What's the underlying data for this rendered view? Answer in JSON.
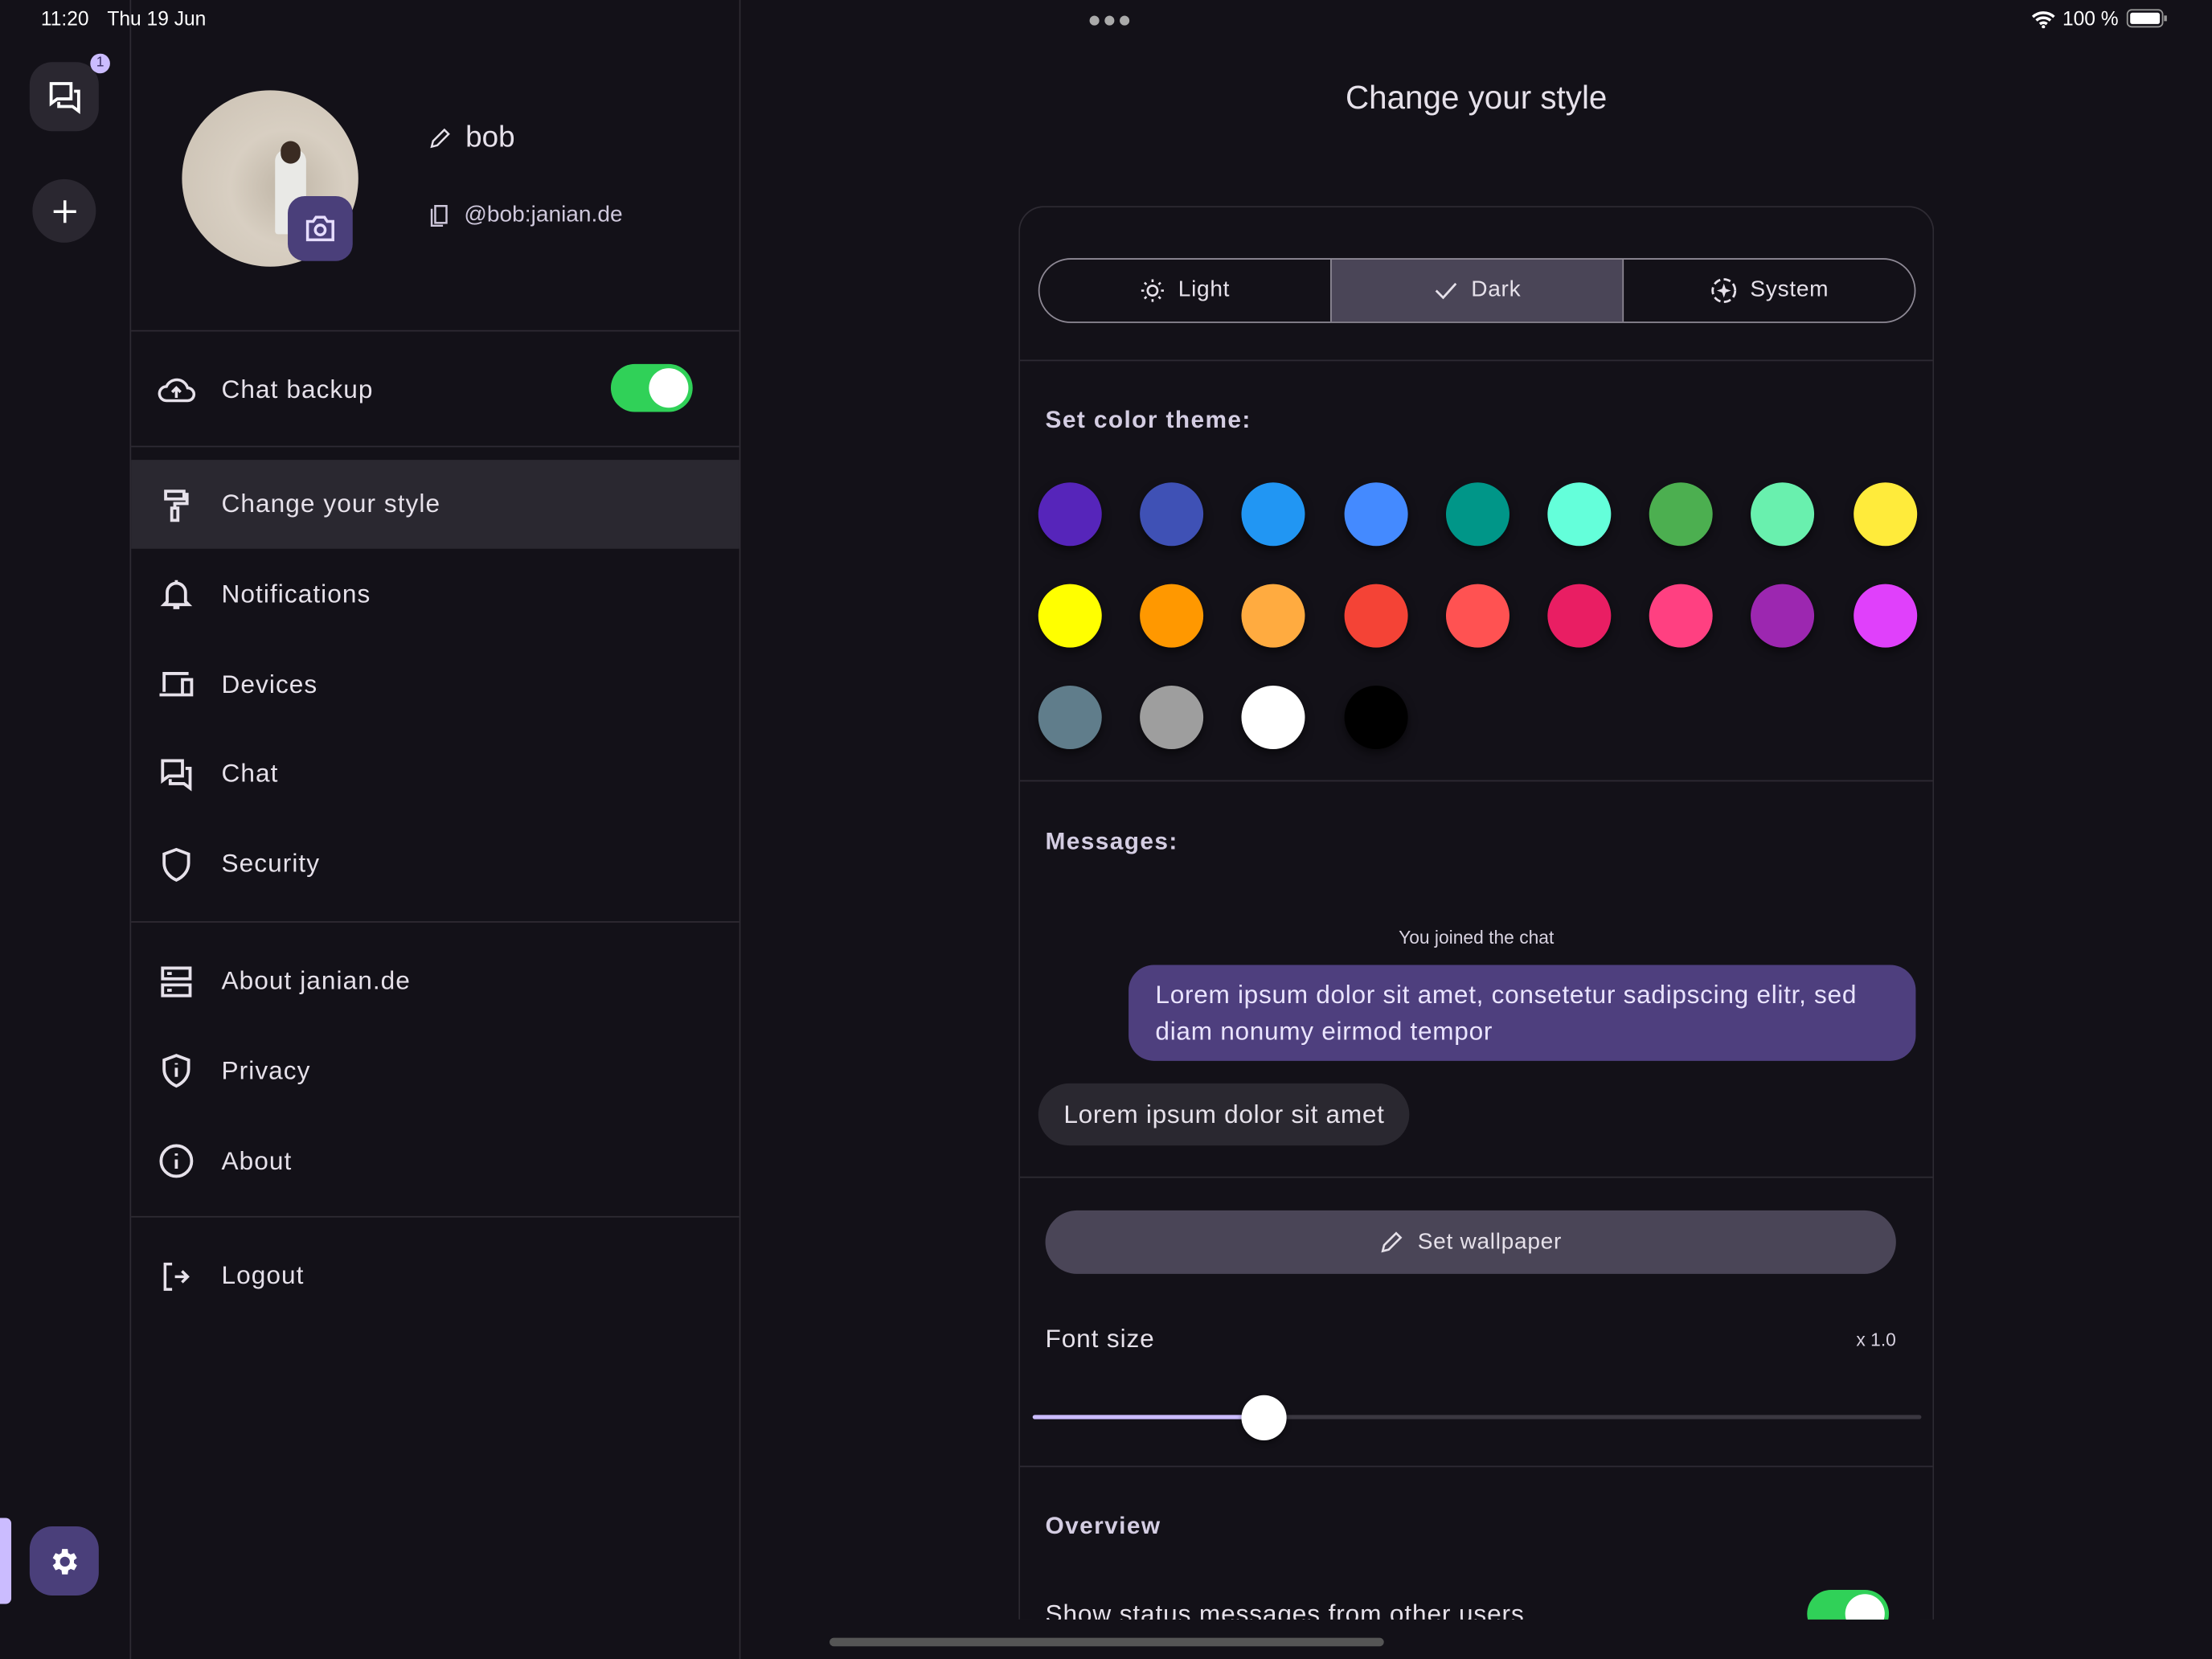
{
  "status_bar": {
    "time": "11:20",
    "date": "Thu 19 Jun",
    "battery": "100 %"
  },
  "rail": {
    "chats_badge": "1"
  },
  "profile": {
    "name": "bob",
    "user_id": "@bob:janian.de"
  },
  "sidebar": {
    "chat_backup": {
      "label": "Chat backup",
      "enabled": true
    },
    "items": [
      {
        "label": "Change your style",
        "icon": "paint-roller-icon",
        "selected": true
      },
      {
        "label": "Notifications",
        "icon": "bell-icon"
      },
      {
        "label": "Devices",
        "icon": "devices-icon"
      },
      {
        "label": "Chat",
        "icon": "chat-icon"
      },
      {
        "label": "Security",
        "icon": "shield-icon"
      }
    ],
    "items2": [
      {
        "label": "About janian.de",
        "icon": "server-icon"
      },
      {
        "label": "Privacy",
        "icon": "privacy-shield-icon"
      },
      {
        "label": "About",
        "icon": "info-icon"
      }
    ],
    "logout": "Logout"
  },
  "main": {
    "title": "Change your style",
    "theme_modes": [
      {
        "label": "Light",
        "icon": "sun-icon"
      },
      {
        "label": "Dark",
        "icon": "check-icon",
        "selected": true
      },
      {
        "label": "System",
        "icon": "auto-icon"
      }
    ],
    "color_theme_heading": "Set color theme:",
    "colors": [
      "#5625BA",
      "#3F51B5",
      "#2196F3",
      "#448AFF",
      "#009688",
      "#64FFDA",
      "#4CAF50",
      "#69F0AE",
      "#FFEB3B",
      "#FFFF00",
      "#FF9800",
      "#FFAB40",
      "#F44336",
      "#FF5252",
      "#E91E63",
      "#FF4081",
      "#9C27B0",
      "#E040FB",
      "#607D8B",
      "#9E9E9E",
      "#FFFFFF",
      "#000000"
    ],
    "messages_heading": "Messages:",
    "joined_notice": "You joined the chat",
    "own_message": "Lorem ipsum dolor sit amet, consetetur sadipscing elitr, sed diam nonumy eirmod tempor",
    "other_message": "Lorem ipsum dolor sit amet",
    "set_wallpaper": "Set wallpaper",
    "font_size_label": "Font size",
    "font_size_value": "x 1.0",
    "font_size_slider_fraction": 0.26,
    "overview_heading": "Overview",
    "show_status_messages": {
      "label": "Show status messages from other users",
      "enabled": true
    }
  },
  "colors_ui": {
    "background": "#131118",
    "accent": "#4A3F7A",
    "toggle_on": "#30D158",
    "own_bubble": "#4E3F7E"
  }
}
